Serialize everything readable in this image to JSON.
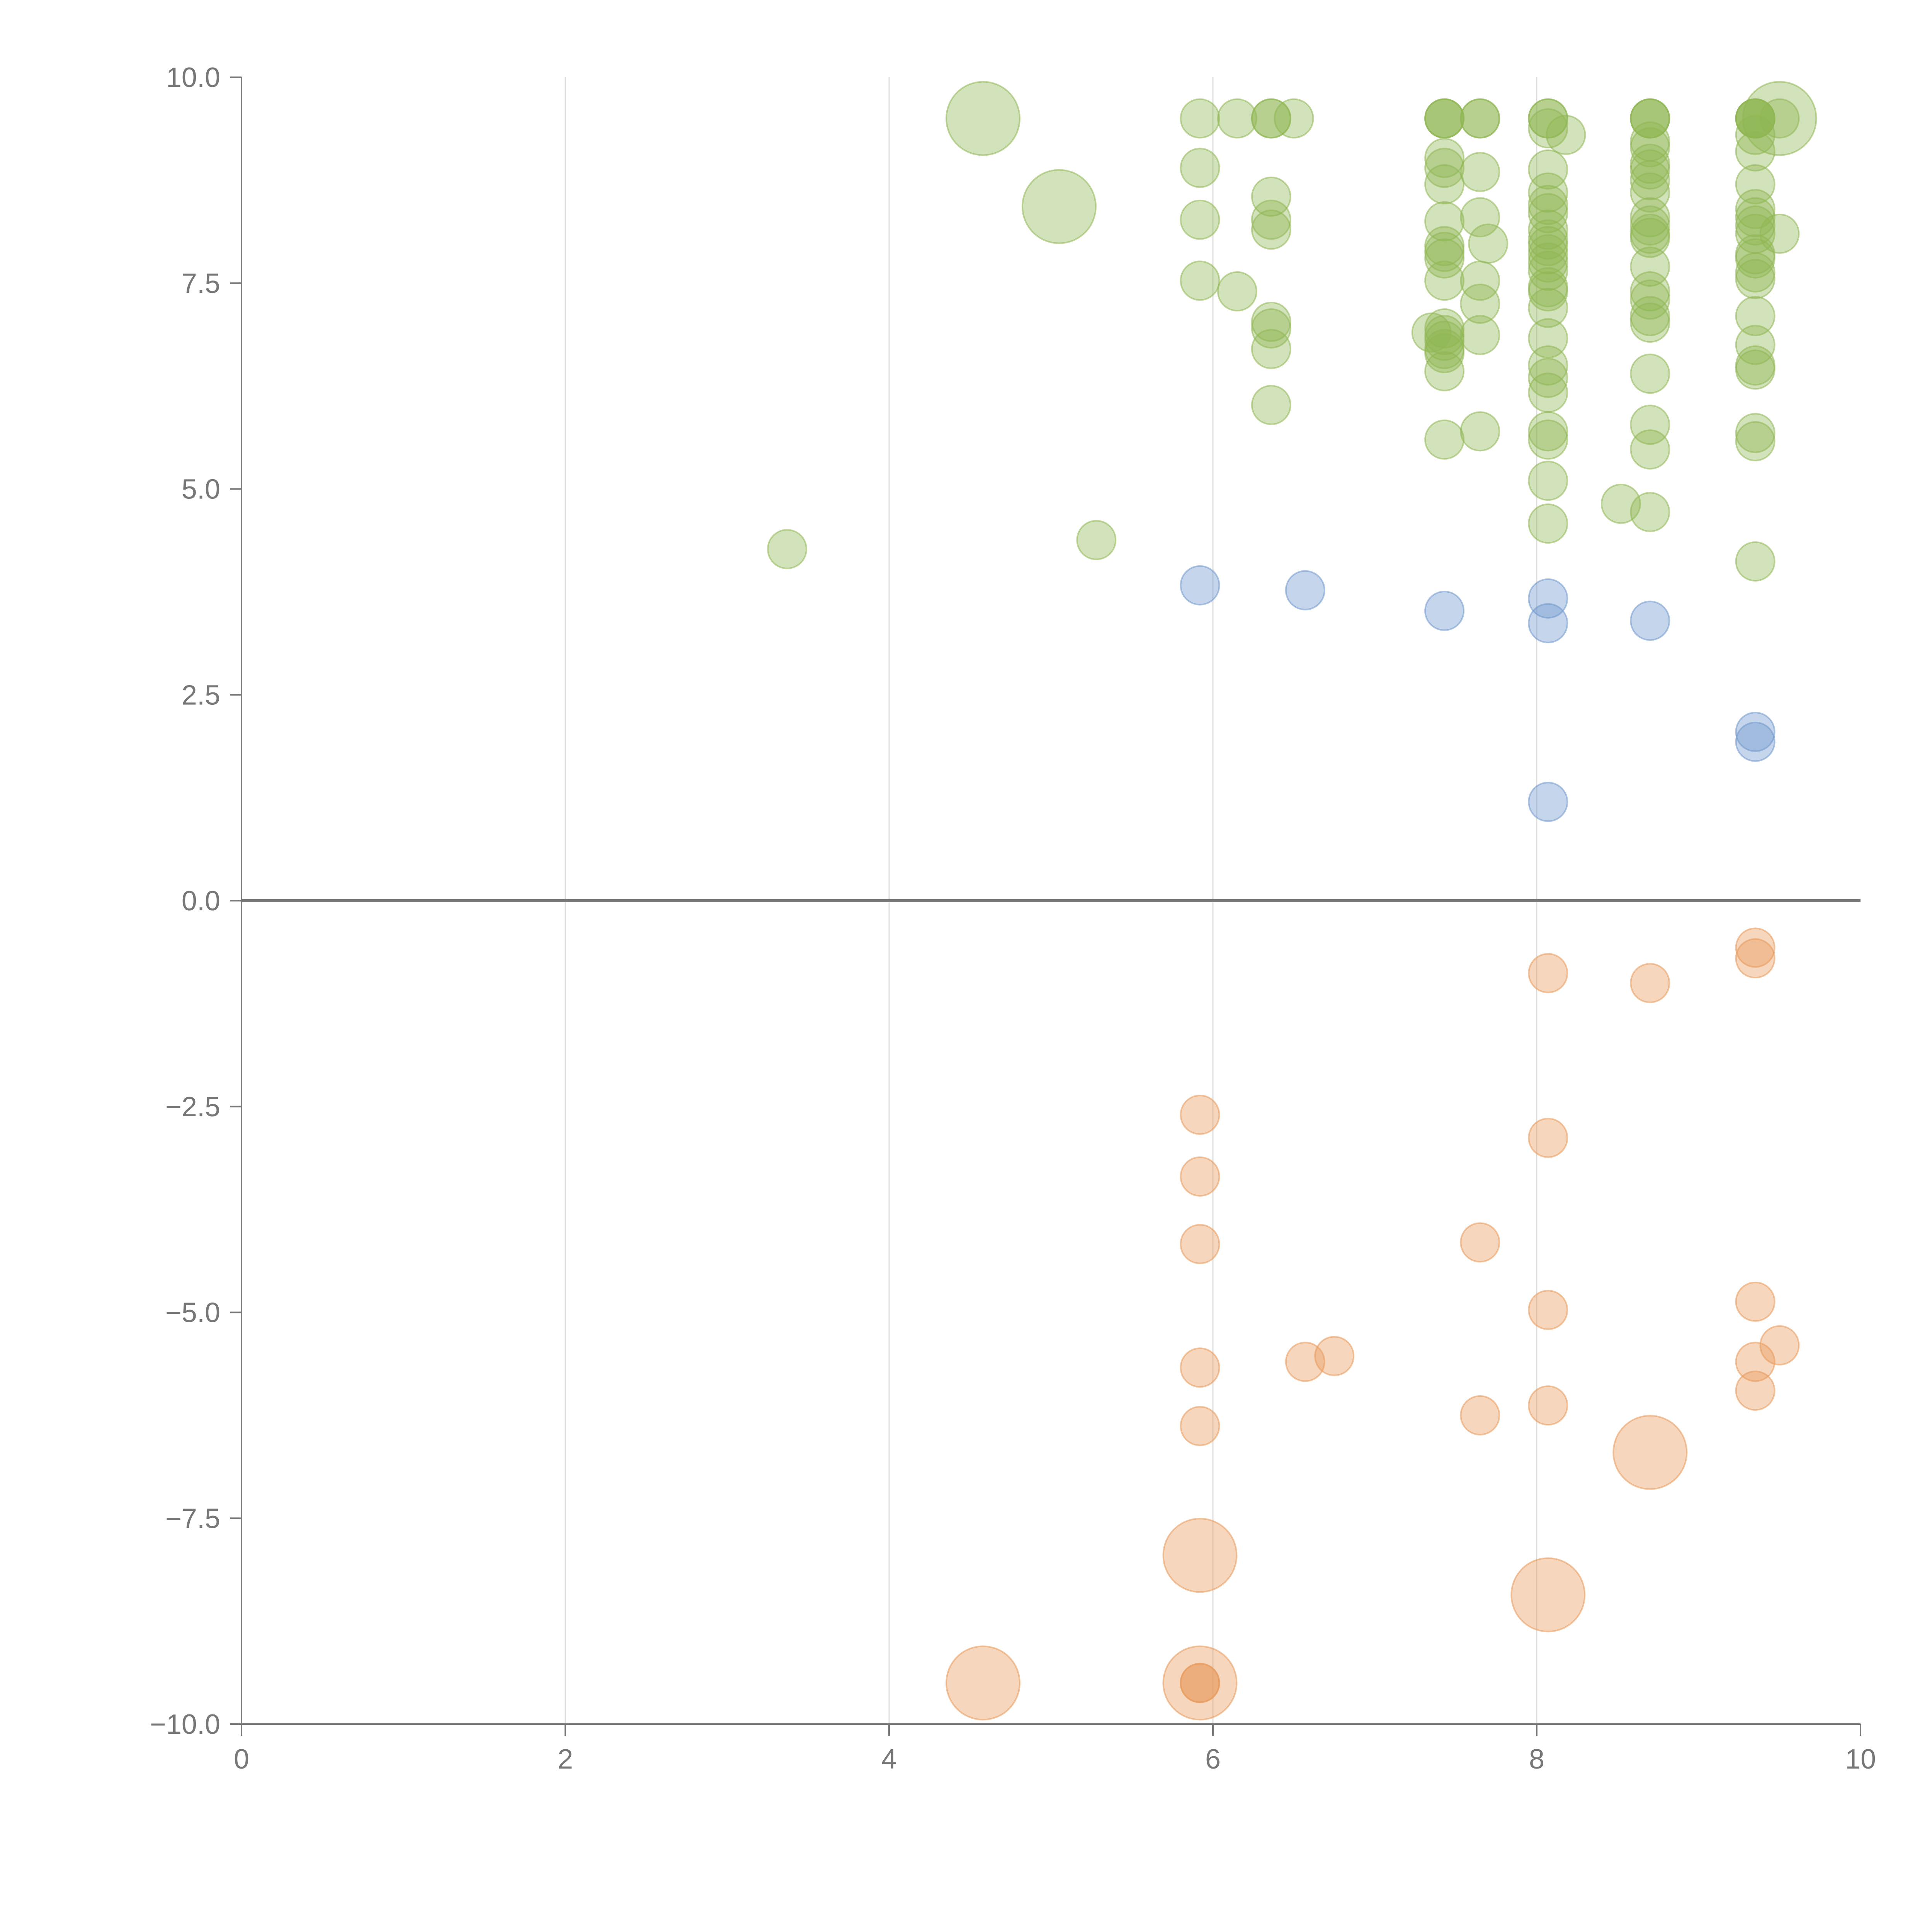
{
  "chart_data": {
    "type": "scatter",
    "title": "",
    "xlabel": "",
    "ylabel": "",
    "xlim": [
      0,
      10
    ],
    "ylim": [
      -10,
      10
    ],
    "x_ticks": [
      0,
      2,
      4,
      6,
      8,
      10
    ],
    "y_ticks": [
      10.0,
      7.5,
      5.0,
      2.5,
      0.0,
      -2.5,
      -5.0,
      -7.5,
      -10.0
    ],
    "x_tick_labels": [
      "0",
      "2",
      "4",
      "6",
      "8",
      "10"
    ],
    "y_tick_labels": [
      "10.0",
      "7.5",
      "5.0",
      "2.5",
      "0.0",
      "−2.5",
      "−5.0",
      "−7.5",
      "−10.0"
    ],
    "grid": {
      "vertical": true,
      "horizontal": false
    },
    "zero_line": true,
    "bubble_opacity": 0.4,
    "series": [
      {
        "color": "#8fb653",
        "points": [
          {
            "x": 4.58,
            "y": 9.5,
            "r": "large"
          },
          {
            "x": 5.05,
            "y": 8.43,
            "r": "large"
          },
          {
            "x": 9.5,
            "y": 9.5,
            "r": "large"
          },
          {
            "x": 3.37,
            "y": 4.27
          },
          {
            "x": 5.28,
            "y": 4.38
          },
          {
            "x": 5.92,
            "y": 9.5
          },
          {
            "x": 5.92,
            "y": 8.9
          },
          {
            "x": 5.92,
            "y": 8.27
          },
          {
            "x": 5.92,
            "y": 7.53
          },
          {
            "x": 6.15,
            "y": 9.5
          },
          {
            "x": 6.15,
            "y": 7.4
          },
          {
            "x": 6.36,
            "y": 9.5
          },
          {
            "x": 6.36,
            "y": 9.5
          },
          {
            "x": 6.36,
            "y": 8.55
          },
          {
            "x": 6.36,
            "y": 8.27
          },
          {
            "x": 6.36,
            "y": 8.15
          },
          {
            "x": 6.36,
            "y": 7.03
          },
          {
            "x": 6.36,
            "y": 6.95
          },
          {
            "x": 6.36,
            "y": 6.7
          },
          {
            "x": 6.36,
            "y": 6.02
          },
          {
            "x": 6.5,
            "y": 9.5
          },
          {
            "x": 7.43,
            "y": 9.5
          },
          {
            "x": 7.43,
            "y": 9.5
          },
          {
            "x": 7.43,
            "y": 9.5
          },
          {
            "x": 7.43,
            "y": 9.02
          },
          {
            "x": 7.43,
            "y": 8.9
          },
          {
            "x": 7.43,
            "y": 8.7
          },
          {
            "x": 7.43,
            "y": 8.25
          },
          {
            "x": 7.43,
            "y": 7.95
          },
          {
            "x": 7.43,
            "y": 7.88
          },
          {
            "x": 7.43,
            "y": 7.8
          },
          {
            "x": 7.43,
            "y": 7.53
          },
          {
            "x": 7.43,
            "y": 6.95
          },
          {
            "x": 7.43,
            "y": 6.87
          },
          {
            "x": 7.43,
            "y": 6.8
          },
          {
            "x": 7.43,
            "y": 6.7
          },
          {
            "x": 7.43,
            "y": 6.65
          },
          {
            "x": 7.43,
            "y": 6.43
          },
          {
            "x": 7.43,
            "y": 5.6
          },
          {
            "x": 7.35,
            "y": 6.9
          },
          {
            "x": 7.65,
            "y": 9.5
          },
          {
            "x": 7.65,
            "y": 9.5
          },
          {
            "x": 7.65,
            "y": 8.85
          },
          {
            "x": 7.65,
            "y": 8.3
          },
          {
            "x": 7.7,
            "y": 7.98
          },
          {
            "x": 7.65,
            "y": 7.53
          },
          {
            "x": 7.65,
            "y": 7.25
          },
          {
            "x": 7.65,
            "y": 6.87
          },
          {
            "x": 7.65,
            "y": 5.7
          },
          {
            "x": 8.07,
            "y": 9.5
          },
          {
            "x": 8.07,
            "y": 9.5
          },
          {
            "x": 8.07,
            "y": 9.38
          },
          {
            "x": 8.18,
            "y": 9.3
          },
          {
            "x": 8.07,
            "y": 8.88
          },
          {
            "x": 8.07,
            "y": 8.6
          },
          {
            "x": 8.07,
            "y": 8.45
          },
          {
            "x": 8.07,
            "y": 8.35
          },
          {
            "x": 8.07,
            "y": 8.15
          },
          {
            "x": 8.07,
            "y": 8.03
          },
          {
            "x": 8.07,
            "y": 7.95
          },
          {
            "x": 8.07,
            "y": 7.85
          },
          {
            "x": 8.07,
            "y": 7.75
          },
          {
            "x": 8.07,
            "y": 7.65
          },
          {
            "x": 8.07,
            "y": 7.45
          },
          {
            "x": 8.07,
            "y": 7.4
          },
          {
            "x": 8.07,
            "y": 7.2
          },
          {
            "x": 8.07,
            "y": 6.83
          },
          {
            "x": 8.07,
            "y": 6.5
          },
          {
            "x": 8.07,
            "y": 6.35
          },
          {
            "x": 8.07,
            "y": 6.17
          },
          {
            "x": 8.07,
            "y": 5.7
          },
          {
            "x": 8.07,
            "y": 5.6
          },
          {
            "x": 8.07,
            "y": 5.1
          },
          {
            "x": 8.07,
            "y": 4.58
          },
          {
            "x": 8.52,
            "y": 4.82
          },
          {
            "x": 8.7,
            "y": 9.5
          },
          {
            "x": 8.7,
            "y": 9.5
          },
          {
            "x": 8.7,
            "y": 9.5
          },
          {
            "x": 8.7,
            "y": 9.22
          },
          {
            "x": 8.7,
            "y": 9.15
          },
          {
            "x": 8.7,
            "y": 8.95
          },
          {
            "x": 8.7,
            "y": 8.88
          },
          {
            "x": 8.7,
            "y": 8.75
          },
          {
            "x": 8.7,
            "y": 8.6
          },
          {
            "x": 8.7,
            "y": 8.3
          },
          {
            "x": 8.7,
            "y": 8.2
          },
          {
            "x": 8.7,
            "y": 8.1
          },
          {
            "x": 8.7,
            "y": 8.05
          },
          {
            "x": 8.7,
            "y": 7.7
          },
          {
            "x": 8.7,
            "y": 7.4
          },
          {
            "x": 8.7,
            "y": 7.3
          },
          {
            "x": 8.7,
            "y": 7.1
          },
          {
            "x": 8.7,
            "y": 7.02
          },
          {
            "x": 8.7,
            "y": 6.4
          },
          {
            "x": 8.7,
            "y": 5.78
          },
          {
            "x": 8.7,
            "y": 5.48
          },
          {
            "x": 8.7,
            "y": 4.72
          },
          {
            "x": 9.35,
            "y": 9.5
          },
          {
            "x": 9.35,
            "y": 9.5
          },
          {
            "x": 9.35,
            "y": 9.5
          },
          {
            "x": 9.35,
            "y": 9.5
          },
          {
            "x": 9.35,
            "y": 9.3
          },
          {
            "x": 9.35,
            "y": 9.1
          },
          {
            "x": 9.35,
            "y": 8.7
          },
          {
            "x": 9.35,
            "y": 8.4
          },
          {
            "x": 9.35,
            "y": 8.3
          },
          {
            "x": 9.35,
            "y": 8.2
          },
          {
            "x": 9.35,
            "y": 8.1
          },
          {
            "x": 9.35,
            "y": 7.85
          },
          {
            "x": 9.35,
            "y": 7.8
          },
          {
            "x": 9.35,
            "y": 7.63
          },
          {
            "x": 9.35,
            "y": 7.55
          },
          {
            "x": 9.35,
            "y": 7.1
          },
          {
            "x": 9.35,
            "y": 6.75
          },
          {
            "x": 9.35,
            "y": 6.5
          },
          {
            "x": 9.35,
            "y": 6.45
          },
          {
            "x": 9.35,
            "y": 5.68
          },
          {
            "x": 9.35,
            "y": 5.58
          },
          {
            "x": 9.35,
            "y": 4.12
          },
          {
            "x": 9.5,
            "y": 9.5
          },
          {
            "x": 9.5,
            "y": 8.1
          }
        ]
      },
      {
        "color": "#6f97cc",
        "points": [
          {
            "x": 5.92,
            "y": 3.83
          },
          {
            "x": 6.57,
            "y": 3.77
          },
          {
            "x": 7.43,
            "y": 3.52
          },
          {
            "x": 8.07,
            "y": 3.67
          },
          {
            "x": 8.07,
            "y": 3.37
          },
          {
            "x": 8.7,
            "y": 3.4
          },
          {
            "x": 9.35,
            "y": 2.05
          },
          {
            "x": 9.35,
            "y": 1.93
          },
          {
            "x": 8.07,
            "y": 1.2
          }
        ]
      },
      {
        "color": "#e8995a",
        "points": [
          {
            "x": 4.58,
            "y": -9.5,
            "r": "large"
          },
          {
            "x": 5.92,
            "y": -9.5,
            "r": "large"
          },
          {
            "x": 5.92,
            "y": -7.95,
            "r": "large"
          },
          {
            "x": 8.07,
            "y": -8.43,
            "r": "large"
          },
          {
            "x": 8.7,
            "y": -6.7,
            "r": "large"
          },
          {
            "x": 5.92,
            "y": -9.5
          },
          {
            "x": 5.92,
            "y": -9.5
          },
          {
            "x": 5.92,
            "y": -2.6
          },
          {
            "x": 5.92,
            "y": -3.35
          },
          {
            "x": 5.92,
            "y": -4.17
          },
          {
            "x": 5.92,
            "y": -5.67
          },
          {
            "x": 5.92,
            "y": -6.38
          },
          {
            "x": 6.57,
            "y": -5.6
          },
          {
            "x": 6.75,
            "y": -5.53
          },
          {
            "x": 7.65,
            "y": -4.15
          },
          {
            "x": 7.65,
            "y": -6.25
          },
          {
            "x": 8.07,
            "y": -0.88
          },
          {
            "x": 8.07,
            "y": -2.88
          },
          {
            "x": 8.07,
            "y": -4.97
          },
          {
            "x": 8.07,
            "y": -6.13
          },
          {
            "x": 8.7,
            "y": -1.0
          },
          {
            "x": 9.35,
            "y": -0.57
          },
          {
            "x": 9.35,
            "y": -0.7
          },
          {
            "x": 9.35,
            "y": -4.87
          },
          {
            "x": 9.35,
            "y": -5.6
          },
          {
            "x": 9.35,
            "y": -5.95
          },
          {
            "x": 9.5,
            "y": -5.4
          }
        ]
      }
    ]
  }
}
